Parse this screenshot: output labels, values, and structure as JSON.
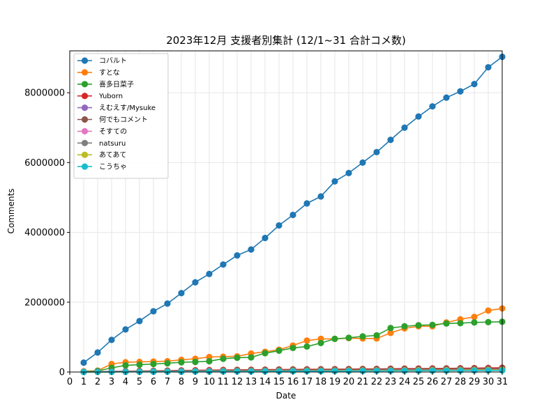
{
  "chart_data": {
    "type": "line",
    "title": "2023年12月 支援者別集計 (12/1~31 合計コメ数)",
    "xlabel": "Date",
    "ylabel": "Comments",
    "xlim": [
      0,
      31
    ],
    "ylim": [
      0,
      9200000
    ],
    "x_ticks": [
      0,
      1,
      2,
      3,
      4,
      5,
      6,
      7,
      8,
      9,
      10,
      11,
      12,
      13,
      14,
      15,
      16,
      17,
      18,
      19,
      20,
      21,
      22,
      23,
      24,
      25,
      26,
      27,
      28,
      29,
      30,
      31
    ],
    "y_ticks": [
      0,
      2000000,
      4000000,
      6000000,
      8000000
    ],
    "grid": true,
    "legend_position": "upper-left",
    "x": [
      1,
      2,
      3,
      4,
      5,
      6,
      7,
      8,
      9,
      10,
      11,
      12,
      13,
      14,
      15,
      16,
      17,
      18,
      19,
      20,
      21,
      22,
      23,
      24,
      25,
      26,
      27,
      28,
      29,
      30,
      31
    ],
    "series": [
      {
        "name": "コバルト",
        "color": "#1f77b4",
        "values": [
          270000,
          560000,
          920000,
          1220000,
          1460000,
          1740000,
          1960000,
          2260000,
          2570000,
          2810000,
          3080000,
          3340000,
          3510000,
          3840000,
          4200000,
          4500000,
          4830000,
          5030000,
          5460000,
          5700000,
          6000000,
          6300000,
          6650000,
          7000000,
          7320000,
          7610000,
          7860000,
          8040000,
          8250000,
          8730000,
          9030000
        ]
      },
      {
        "name": "すとな",
        "color": "#ff7f0e",
        "values": [
          20000,
          40000,
          230000,
          280000,
          290000,
          300000,
          310000,
          350000,
          380000,
          430000,
          440000,
          450000,
          530000,
          580000,
          640000,
          760000,
          900000,
          950000,
          950000,
          970000,
          960000,
          960000,
          1120000,
          1250000,
          1310000,
          1310000,
          1420000,
          1510000,
          1580000,
          1760000,
          1820000
        ]
      },
      {
        "name": "喜多日菜子",
        "color": "#2ca02c",
        "values": [
          10000,
          30000,
          120000,
          190000,
          210000,
          230000,
          250000,
          280000,
          290000,
          310000,
          380000,
          410000,
          420000,
          540000,
          610000,
          690000,
          730000,
          830000,
          950000,
          980000,
          1020000,
          1050000,
          1260000,
          1310000,
          1340000,
          1350000,
          1390000,
          1400000,
          1420000,
          1430000,
          1440000
        ]
      },
      {
        "name": "Yuborn",
        "color": "#d62728",
        "values": [
          5000,
          10000,
          18000,
          25000,
          30000,
          35000,
          40000,
          45000,
          50000,
          55000,
          60000,
          62000,
          65000,
          68000,
          72000,
          75000,
          78000,
          80000,
          82000,
          85000,
          88000,
          90000,
          95000,
          98000,
          100000,
          102000,
          105000,
          108000,
          112000,
          118000,
          122000
        ]
      },
      {
        "name": "えむえす/Mysuke",
        "color": "#9467bd",
        "values": [
          3000,
          6000,
          10000,
          14000,
          18000,
          22000,
          25000,
          28000,
          30000,
          33000,
          36000,
          38000,
          40000,
          42000,
          44000,
          46000,
          48000,
          50000,
          52000,
          54000,
          56000,
          58000,
          60000,
          62000,
          64000,
          66000,
          68000,
          70000,
          72000,
          74000,
          76000
        ]
      },
      {
        "name": "何でもコメント",
        "color": "#8c564b",
        "values": [
          4000,
          8000,
          12000,
          18000,
          22000,
          28000,
          32000,
          36000,
          40000,
          44000,
          48000,
          52000,
          55000,
          58000,
          62000,
          65000,
          68000,
          70000,
          72000,
          75000,
          78000,
          80000,
          82000,
          85000,
          88000,
          90000,
          92000,
          95000,
          98000,
          100000,
          105000
        ]
      },
      {
        "name": "そすての",
        "color": "#e377c2",
        "values": [
          2000,
          4000,
          6000,
          8000,
          10000,
          12000,
          14000,
          16000,
          18000,
          20000,
          22000,
          24000,
          26000,
          28000,
          30000,
          32000,
          34000,
          36000,
          38000,
          40000,
          42000,
          44000,
          46000,
          48000,
          50000,
          52000,
          54000,
          56000,
          58000,
          60000,
          62000
        ]
      },
      {
        "name": "natsuru",
        "color": "#7f7f7f",
        "values": [
          1000,
          3000,
          5000,
          7000,
          9000,
          11000,
          13000,
          15000,
          17000,
          19000,
          21000,
          23000,
          25000,
          27000,
          29000,
          31000,
          33000,
          35000,
          37000,
          39000,
          41000,
          43000,
          45000,
          47000,
          49000,
          51000,
          53000,
          55000,
          57000,
          59000,
          61000
        ]
      },
      {
        "name": "あてあて",
        "color": "#bcbd22",
        "values": [
          1000,
          2000,
          4000,
          6000,
          8000,
          10000,
          12000,
          14000,
          16000,
          18000,
          20000,
          22000,
          24000,
          26000,
          28000,
          30000,
          32000,
          34000,
          36000,
          38000,
          40000,
          42000,
          44000,
          46000,
          48000,
          50000,
          52000,
          54000,
          56000,
          58000,
          60000
        ]
      },
      {
        "name": "こうちゃ",
        "color": "#17becf",
        "values": [
          1000,
          2000,
          3000,
          5000,
          6000,
          8000,
          9000,
          11000,
          12000,
          14000,
          15000,
          17000,
          18000,
          20000,
          21000,
          23000,
          24000,
          26000,
          27000,
          29000,
          30000,
          32000,
          33000,
          35000,
          36000,
          38000,
          39000,
          41000,
          42000,
          44000,
          45000
        ]
      }
    ]
  }
}
